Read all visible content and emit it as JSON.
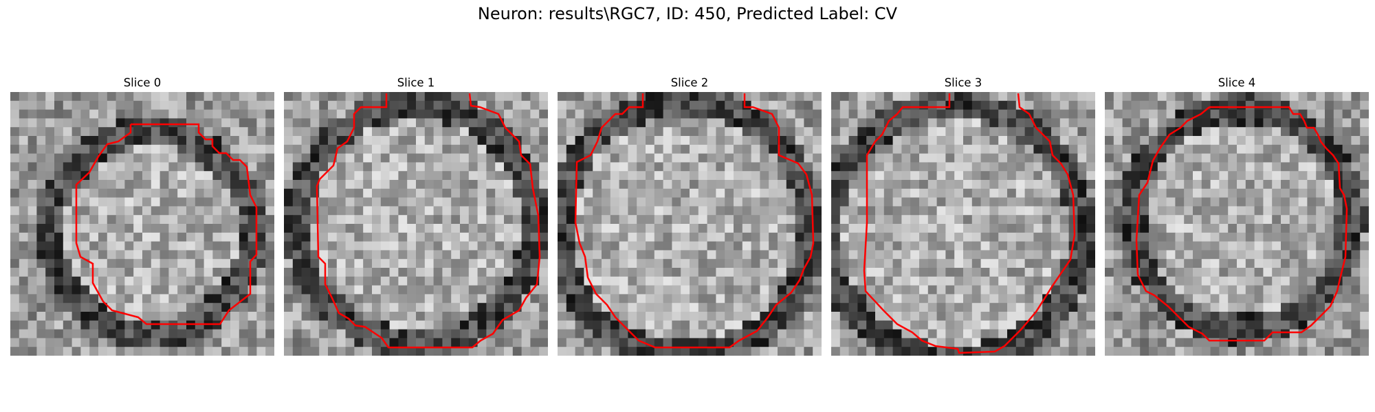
{
  "figure": {
    "title": "Neuron: results\\RGC7, ID: 450, Predicted Label: CV"
  },
  "panels": [
    {
      "title": "Slice 0"
    },
    {
      "title": "Slice 1"
    },
    {
      "title": "Slice 2"
    },
    {
      "title": "Slice 3"
    },
    {
      "title": "Slice 4"
    }
  ],
  "colors": {
    "contour": "#ff0000",
    "background": "#ffffff"
  }
}
